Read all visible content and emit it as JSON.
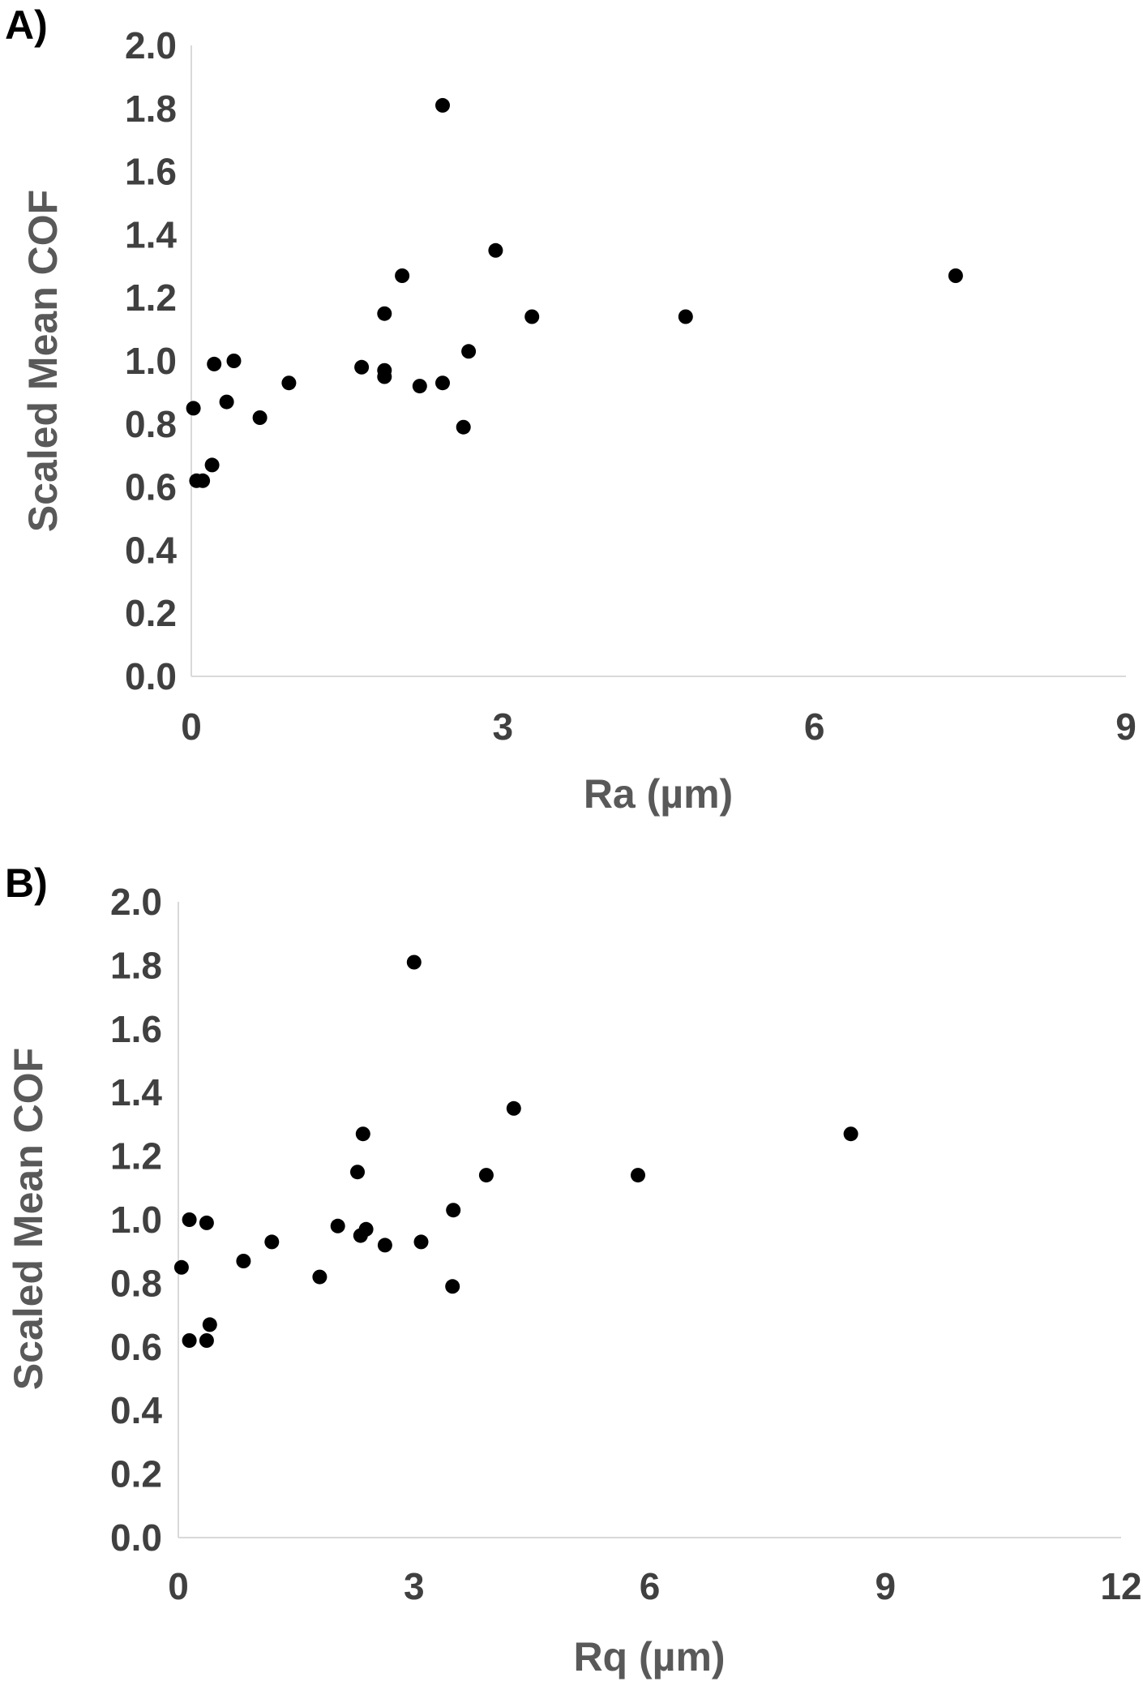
{
  "chart_data": [
    {
      "type": "scatter",
      "panel_label": "A)",
      "xlabel": "Ra (µm)",
      "ylabel": "Scaled Mean COF",
      "xlim": [
        0,
        9
      ],
      "ylim": [
        0,
        2
      ],
      "xticks": [
        0,
        3,
        6,
        9
      ],
      "yticks": [
        "0.0",
        "0.2",
        "0.4",
        "0.6",
        "0.8",
        "1.0",
        "1.2",
        "1.4",
        "1.6",
        "1.8",
        "2.0"
      ],
      "grid": false,
      "marker_color": "#000000",
      "points": [
        {
          "x": 0.02,
          "y": 0.85
        },
        {
          "x": 0.05,
          "y": 0.62
        },
        {
          "x": 0.11,
          "y": 0.62
        },
        {
          "x": 0.2,
          "y": 0.67
        },
        {
          "x": 0.22,
          "y": 0.99
        },
        {
          "x": 0.34,
          "y": 0.87
        },
        {
          "x": 0.41,
          "y": 1.0
        },
        {
          "x": 0.66,
          "y": 0.82
        },
        {
          "x": 0.94,
          "y": 0.93
        },
        {
          "x": 1.64,
          "y": 0.98
        },
        {
          "x": 1.86,
          "y": 1.15
        },
        {
          "x": 1.86,
          "y": 0.97
        },
        {
          "x": 1.86,
          "y": 0.95
        },
        {
          "x": 2.03,
          "y": 1.27
        },
        {
          "x": 2.2,
          "y": 0.92
        },
        {
          "x": 2.42,
          "y": 1.81
        },
        {
          "x": 2.42,
          "y": 0.93
        },
        {
          "x": 2.62,
          "y": 0.79
        },
        {
          "x": 2.67,
          "y": 1.03
        },
        {
          "x": 2.93,
          "y": 1.35
        },
        {
          "x": 3.28,
          "y": 1.14
        },
        {
          "x": 4.76,
          "y": 1.14
        },
        {
          "x": 7.36,
          "y": 1.27
        }
      ]
    },
    {
      "type": "scatter",
      "panel_label": "B)",
      "xlabel": "Rq (µm)",
      "ylabel": "Scaled Mean COF",
      "xlim": [
        0,
        12
      ],
      "ylim": [
        0,
        2
      ],
      "xticks": [
        0,
        3,
        6,
        9,
        12
      ],
      "yticks": [
        "0.0",
        "0.2",
        "0.4",
        "0.6",
        "0.8",
        "1.0",
        "1.2",
        "1.4",
        "1.6",
        "1.8",
        "2.0"
      ],
      "grid": false,
      "marker_color": "#000000",
      "points": [
        {
          "x": 0.04,
          "y": 0.85
        },
        {
          "x": 0.14,
          "y": 0.62
        },
        {
          "x": 0.14,
          "y": 1.0
        },
        {
          "x": 0.36,
          "y": 0.62
        },
        {
          "x": 0.36,
          "y": 0.99
        },
        {
          "x": 0.4,
          "y": 0.67
        },
        {
          "x": 0.83,
          "y": 0.87
        },
        {
          "x": 1.19,
          "y": 0.93
        },
        {
          "x": 1.8,
          "y": 0.82
        },
        {
          "x": 2.03,
          "y": 0.98
        },
        {
          "x": 2.28,
          "y": 1.15
        },
        {
          "x": 2.32,
          "y": 0.95
        },
        {
          "x": 2.35,
          "y": 1.27
        },
        {
          "x": 2.39,
          "y": 0.97
        },
        {
          "x": 2.63,
          "y": 0.92
        },
        {
          "x": 3.0,
          "y": 1.81
        },
        {
          "x": 3.09,
          "y": 0.93
        },
        {
          "x": 3.49,
          "y": 0.79
        },
        {
          "x": 3.5,
          "y": 1.03
        },
        {
          "x": 3.92,
          "y": 1.14
        },
        {
          "x": 4.27,
          "y": 1.35
        },
        {
          "x": 5.85,
          "y": 1.14
        },
        {
          "x": 8.56,
          "y": 1.27
        }
      ]
    }
  ]
}
